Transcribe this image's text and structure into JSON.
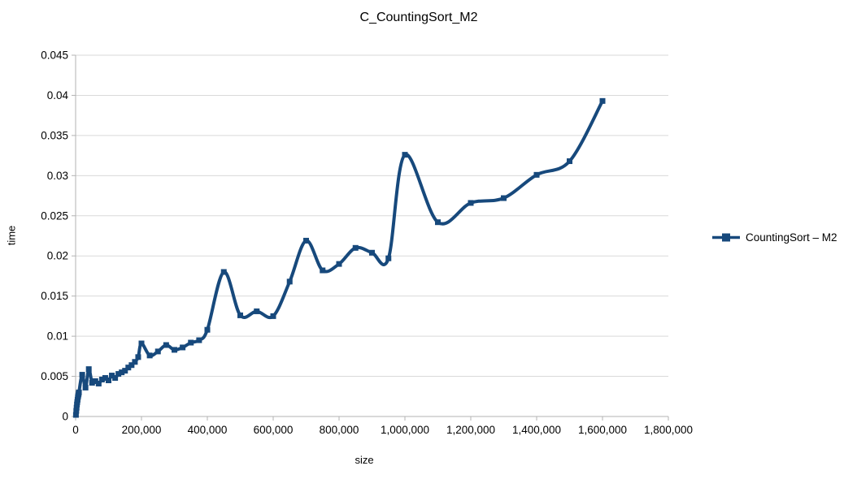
{
  "chart_data": {
    "type": "line",
    "title": "C_CountingSort_M2",
    "xlabel": "size",
    "ylabel": "time",
    "legend": "CountingSort – M2",
    "marker": "square",
    "line_smoothing": true,
    "grid": "horizontal-only",
    "legend_position": "right",
    "colors": {
      "series": "#17497C",
      "grid": "#D9D9D9",
      "axis": "#B3B3B3",
      "text": "#000000",
      "background": "#FFFFFF"
    },
    "xlim": [
      0,
      1800000
    ],
    "ylim": [
      0,
      0.045
    ],
    "x_ticks": [
      0,
      200000,
      400000,
      600000,
      800000,
      1000000,
      1200000,
      1400000,
      1600000,
      1800000
    ],
    "x_tick_labels": [
      "0",
      "200,000",
      "400,000",
      "600,000",
      "800,000",
      "1,000,000",
      "1,200,000",
      "1,400,000",
      "1,600,000",
      "1,800,000"
    ],
    "y_ticks": [
      0,
      0.005,
      0.01,
      0.015,
      0.02,
      0.025,
      0.03,
      0.035,
      0.04,
      0.045
    ],
    "y_tick_labels": [
      "0",
      "0.005",
      "0.01",
      "0.015",
      "0.02",
      "0.025",
      "0.03",
      "0.035",
      "0.04",
      "0.045"
    ],
    "points": [
      [
        1000,
        0.0002
      ],
      [
        2000,
        0.0007
      ],
      [
        3000,
        0.0011
      ],
      [
        4000,
        0.0015
      ],
      [
        5000,
        0.0018
      ],
      [
        6000,
        0.0021
      ],
      [
        7000,
        0.0024
      ],
      [
        8000,
        0.0026
      ],
      [
        9000,
        0.0028
      ],
      [
        10000,
        0.003
      ],
      [
        20000,
        0.0052
      ],
      [
        30000,
        0.0036
      ],
      [
        40000,
        0.0059
      ],
      [
        50000,
        0.0042
      ],
      [
        60000,
        0.0044
      ],
      [
        70000,
        0.0041
      ],
      [
        80000,
        0.0046
      ],
      [
        90000,
        0.0048
      ],
      [
        100000,
        0.0045
      ],
      [
        110000,
        0.0051
      ],
      [
        120000,
        0.0048
      ],
      [
        130000,
        0.0053
      ],
      [
        140000,
        0.0055
      ],
      [
        150000,
        0.0057
      ],
      [
        160000,
        0.0061
      ],
      [
        170000,
        0.0064
      ],
      [
        180000,
        0.0068
      ],
      [
        190000,
        0.0074
      ],
      [
        200000,
        0.0091
      ],
      [
        225000,
        0.0076
      ],
      [
        250000,
        0.0081
      ],
      [
        275000,
        0.0089
      ],
      [
        300000,
        0.0083
      ],
      [
        325000,
        0.0086
      ],
      [
        350000,
        0.0092
      ],
      [
        375000,
        0.0095
      ],
      [
        400000,
        0.0108
      ],
      [
        450000,
        0.018
      ],
      [
        500000,
        0.0126
      ],
      [
        550000,
        0.0131
      ],
      [
        600000,
        0.0125
      ],
      [
        650000,
        0.0168
      ],
      [
        700000,
        0.0219
      ],
      [
        750000,
        0.0182
      ],
      [
        800000,
        0.019
      ],
      [
        850000,
        0.021
      ],
      [
        900000,
        0.0204
      ],
      [
        950000,
        0.0197
      ],
      [
        1000000,
        0.0326
      ],
      [
        1100000,
        0.0242
      ],
      [
        1200000,
        0.0266
      ],
      [
        1300000,
        0.0272
      ],
      [
        1400000,
        0.0301
      ],
      [
        1500000,
        0.0318
      ],
      [
        1600000,
        0.0393
      ]
    ]
  }
}
